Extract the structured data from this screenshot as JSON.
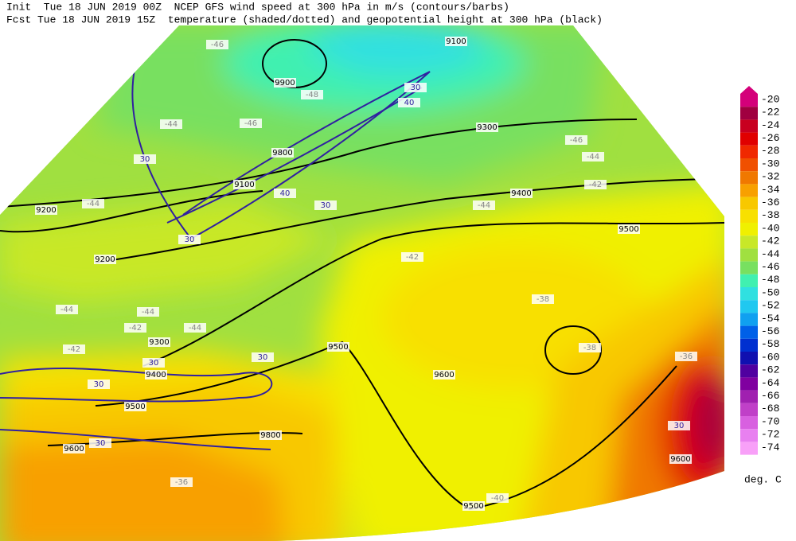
{
  "header": {
    "line1": "Init  Tue 18 JUN 2019 00Z  NCEP GFS wind speed at 300 hPa in m/s (contours/barbs)",
    "line2": "Fcst Tue 18 JUN 2019 15Z  temperature (shaded/dotted) and geopotential height at 300 hPa (black)"
  },
  "colorbar": {
    "levels": [
      -20,
      -22,
      -24,
      -26,
      -28,
      -30,
      -32,
      -34,
      -36,
      -38,
      -40,
      -42,
      -44,
      -46,
      -48,
      -50,
      -52,
      -54,
      -56,
      -58,
      -60,
      -62,
      -64,
      -66,
      -68,
      -70,
      -72,
      -74
    ],
    "colors": [
      "#d4007a",
      "#a00040",
      "#c80020",
      "#e00000",
      "#f02800",
      "#f05000",
      "#f07800",
      "#f8a000",
      "#f8c800",
      "#f8e000",
      "#f0f000",
      "#c8e828",
      "#a0e040",
      "#78e060",
      "#40f0b0",
      "#30e0e0",
      "#20c8f0",
      "#10a0f0",
      "#0060e8",
      "#0030d0",
      "#1010b0",
      "#5000a0",
      "#8000a0",
      "#a020b0",
      "#c040c8",
      "#d860e0",
      "#e880f0",
      "#f8a0f8"
    ],
    "unit": "deg. C"
  },
  "height_labels": [
    9100,
    9900,
    9300,
    9800,
    9100,
    9200,
    9400,
    9500,
    9200,
    9300,
    9400,
    9500,
    9600,
    9500,
    9800,
    9600,
    9600,
    9500
  ],
  "wind_labels": [
    30,
    40,
    30,
    40,
    30,
    30,
    30,
    30,
    30,
    30,
    30
  ],
  "temperature_labels": [
    -46,
    -48,
    -44,
    -46,
    -44,
    -46,
    -44,
    -42,
    -44,
    -42,
    -44,
    -44,
    -42,
    -44,
    -42,
    -38,
    -38,
    -36,
    -40,
    -36
  ]
}
